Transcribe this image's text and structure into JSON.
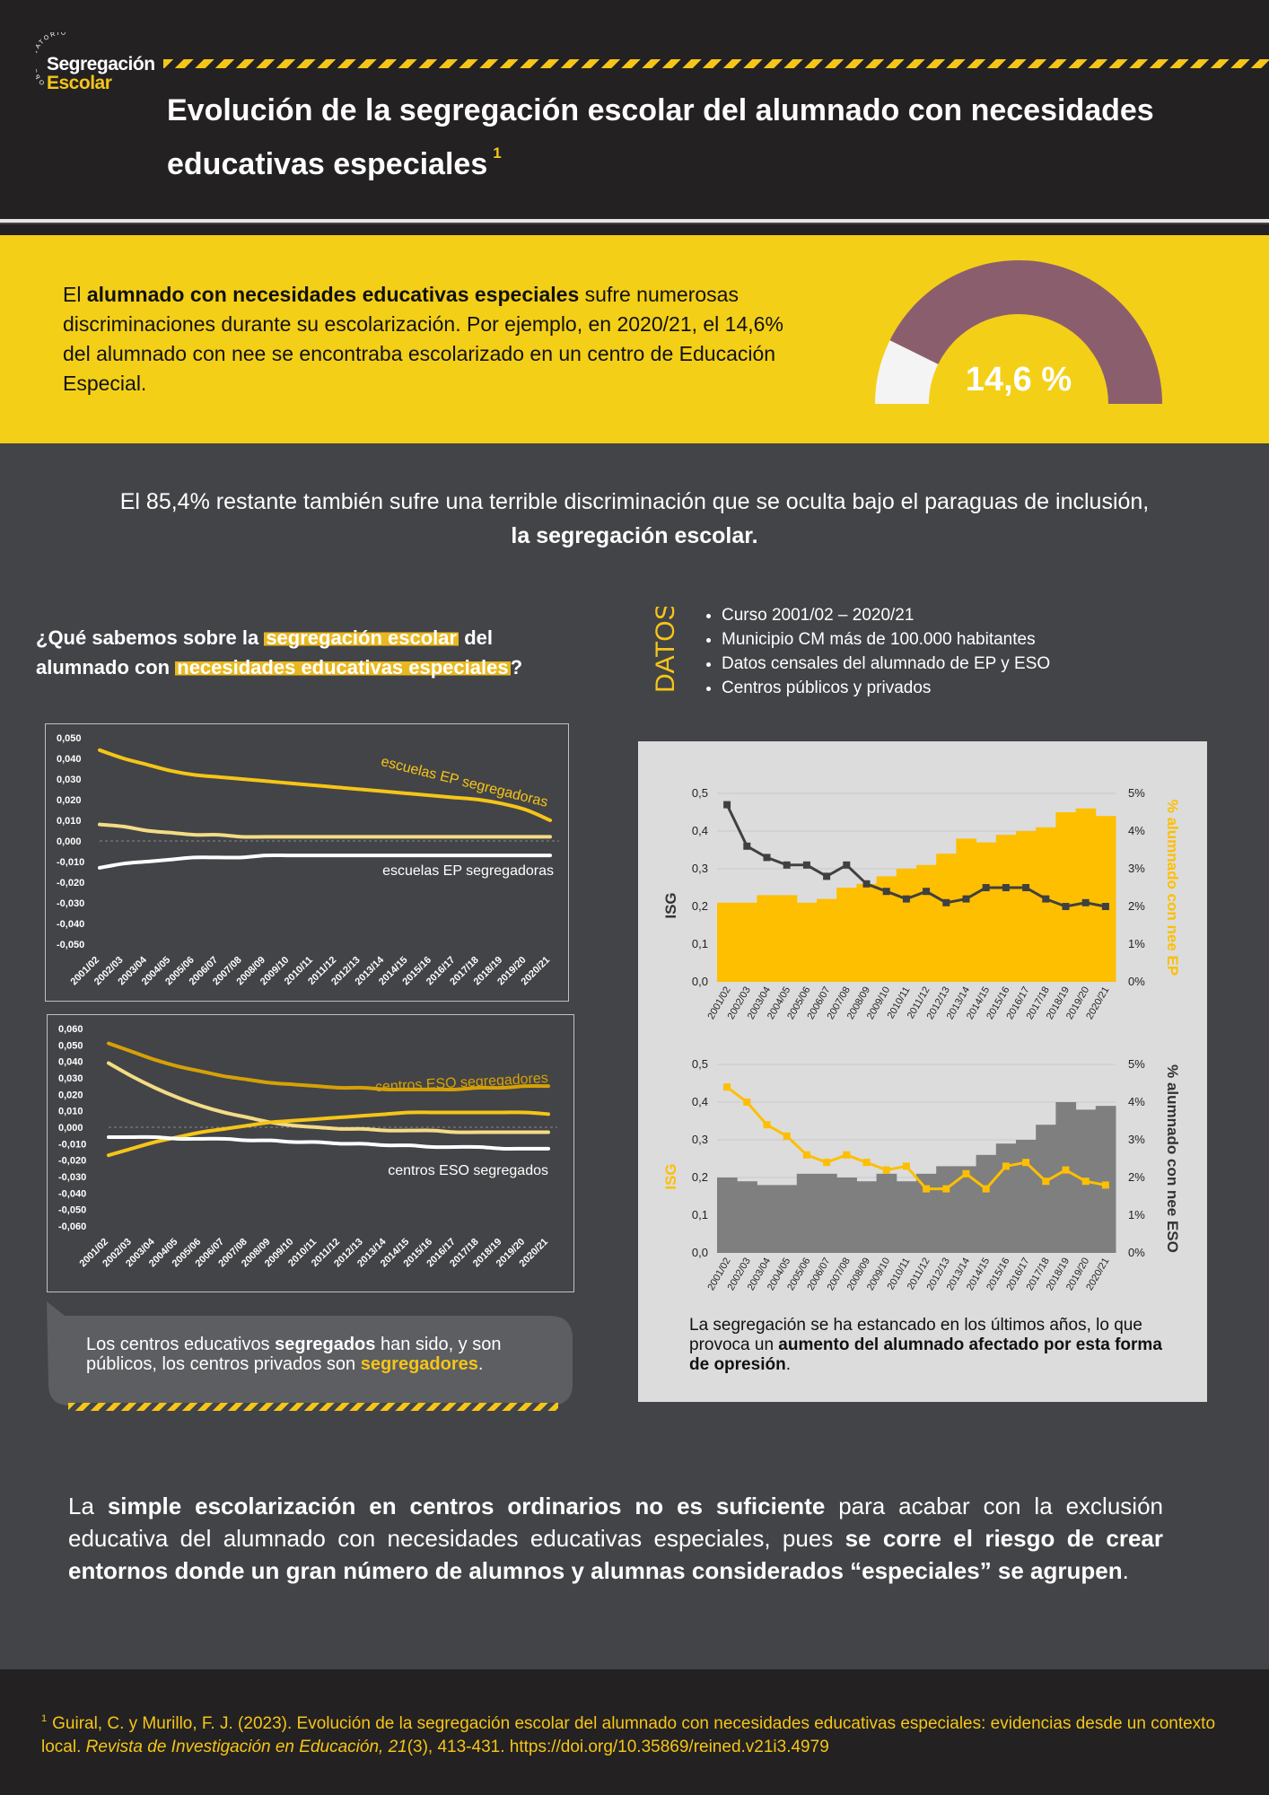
{
  "logo": {
    "arc_text": "OBSERVATORIO",
    "line1": "Segregación",
    "line2": "Escolar"
  },
  "title": {
    "text": "Evolución de la segregación escolar del alumnado con necesidades educativas especiales",
    "footnote_mark": "1"
  },
  "intro": {
    "p1": "El ",
    "bold": "alumnado con necesidades educativas especiales",
    "p2": " sufre numerosas discriminaciones durante su escolarización. Por ejemplo, en 2020/21, el 14,6% del alumnado con nee se encontraba escolarizado en un centro de Educación Especial."
  },
  "gauge": {
    "value": 14.6,
    "label": "14,6 %",
    "fill_color": "#8b5e6e",
    "rest_color": "#f4f4f4"
  },
  "sub1": {
    "line1": "El 85,4% restante también sufre una terrible discriminación que se oculta bajo el paraguas de inclusión,",
    "line2": "la segregación escolar."
  },
  "question": {
    "a": "¿Qué sabemos sobre la ",
    "hl1": "segregación escolar",
    "b": " del",
    "c": "alumnado con ",
    "hl2": "necesidades educativas especiales",
    "d": "?"
  },
  "datos": {
    "label": "DATOS",
    "items": [
      "Curso 2001/02 – 2020/21",
      "Municipio CM más de 100.000 habitantes",
      "Datos censales del alumnado de EP y ESO",
      "Centros públicos y privados"
    ]
  },
  "bubble": {
    "a": "Los centros educativos ",
    "b1": "segregados",
    "c": " han sido, y son públicos, los centros privados son ",
    "b2": "segregadores",
    "d": "."
  },
  "note2": {
    "a": "La segregación se ha estancado en los últimos años, lo que provoca un ",
    "b": "aumento del alumnado afectado por esta forma de opresión",
    "c": "."
  },
  "conclusion": {
    "a": "La ",
    "b1": "simple escolarización en centros ordinarios no es suficiente",
    "c": " para acabar con la exclusión educativa del alumnado con necesidades educativas especiales, pues ",
    "b2": "se corre el riesgo de crear entornos donde un gran número de alumnos y alumnas considerados “especiales” se agrupen",
    "d": "."
  },
  "footer": {
    "mark": "1",
    "a": "Guiral, C. y Murillo, F. J. (2023). Evolución de la segregación escolar del alumnado con necesidades educativas especiales: evidencias desde un contexto local. ",
    "journal": "Revista de Investigación en Educación, 21",
    "b": "(3), 413-431. https://doi.org/10.35869/reined.v21i3.4979"
  },
  "chart_data": [
    {
      "type": "line",
      "years": [
        "2001/02",
        "2002/03",
        "2003/04",
        "2004/05",
        "2005/06",
        "2006/07",
        "2007/08",
        "2008/09",
        "2009/10",
        "2010/11",
        "2011/12",
        "2012/13",
        "2013/14",
        "2014/15",
        "2015/16",
        "2016/17",
        "2017/18",
        "2018/19",
        "2019/20",
        "2020/21"
      ],
      "ylim": [
        -0.05,
        0.05
      ],
      "yticks": [
        "0,050",
        "0,040",
        "0,030",
        "0,020",
        "0,010",
        "0,000",
        "-0,010",
        "-0,020",
        "-0,030",
        "-0,040",
        "-0,050"
      ],
      "series": [
        {
          "name": "escuelas EP segregadoras",
          "color": "#f5c518",
          "values": [
            0.044,
            0.04,
            0.037,
            0.034,
            0.032,
            0.031,
            0.03,
            0.029,
            0.028,
            0.027,
            0.026,
            0.025,
            0.024,
            0.023,
            0.022,
            0.021,
            0.02,
            0.018,
            0.015,
            0.01
          ]
        },
        {
          "name": "",
          "color": "#f3dc86",
          "values": [
            0.008,
            0.007,
            0.005,
            0.004,
            0.003,
            0.003,
            0.002,
            0.002,
            0.002,
            0.002,
            0.002,
            0.002,
            0.002,
            0.002,
            0.002,
            0.002,
            0.002,
            0.002,
            0.002,
            0.002
          ]
        },
        {
          "name": "escuelas EP segregadoras",
          "color": "#ffffff",
          "values": [
            -0.013,
            -0.011,
            -0.01,
            -0.009,
            -0.008,
            -0.008,
            -0.008,
            -0.007,
            -0.007,
            -0.007,
            -0.007,
            -0.007,
            -0.007,
            -0.007,
            -0.007,
            -0.007,
            -0.007,
            -0.007,
            -0.007,
            -0.007
          ]
        }
      ]
    },
    {
      "type": "line",
      "years": [
        "2001/02",
        "2002/03",
        "2003/04",
        "2004/05",
        "2005/06",
        "2006/07",
        "2007/08",
        "2008/09",
        "2009/10",
        "2010/11",
        "2011/12",
        "2012/13",
        "2013/14",
        "2014/15",
        "2015/16",
        "2016/17",
        "2017/18",
        "2018/19",
        "2019/20",
        "2020/21"
      ],
      "ylim": [
        -0.06,
        0.06
      ],
      "yticks": [
        "0,060",
        "0,050",
        "0,040",
        "0,030",
        "0,020",
        "0,010",
        "0,000",
        "-0,010",
        "-0,020",
        "-0,030",
        "-0,040",
        "-0,050",
        "-0,060"
      ],
      "series": [
        {
          "name": "centros ESO segregadores",
          "color": "#d6a106",
          "values": [
            0.051,
            0.046,
            0.041,
            0.037,
            0.034,
            0.031,
            0.029,
            0.027,
            0.026,
            0.025,
            0.024,
            0.024,
            0.023,
            0.023,
            0.023,
            0.023,
            0.024,
            0.024,
            0.025,
            0.025
          ]
        },
        {
          "name": "",
          "color": "#f3dc86",
          "values": [
            0.039,
            0.031,
            0.024,
            0.018,
            0.013,
            0.009,
            0.006,
            0.003,
            0.001,
            0.0,
            -0.001,
            -0.001,
            -0.002,
            -0.002,
            -0.002,
            -0.003,
            -0.003,
            -0.003,
            -0.003,
            -0.003
          ]
        },
        {
          "name": "",
          "color": "#f5c518",
          "values": [
            -0.017,
            -0.013,
            -0.009,
            -0.006,
            -0.003,
            -0.001,
            0.001,
            0.003,
            0.004,
            0.005,
            0.006,
            0.007,
            0.008,
            0.009,
            0.009,
            0.009,
            0.009,
            0.009,
            0.009,
            0.008
          ]
        },
        {
          "name": "centros ESO segregados",
          "color": "#ffffff",
          "values": [
            -0.006,
            -0.006,
            -0.006,
            -0.007,
            -0.007,
            -0.007,
            -0.008,
            -0.008,
            -0.009,
            -0.009,
            -0.01,
            -0.01,
            -0.011,
            -0.011,
            -0.012,
            -0.012,
            -0.012,
            -0.013,
            -0.013,
            -0.013
          ]
        }
      ]
    },
    {
      "type": "bar+line",
      "years": [
        "2001/02",
        "2002/03",
        "2003/04",
        "2004/05",
        "2005/06",
        "2006/07",
        "2007/08",
        "2008/09",
        "2009/10",
        "2010/11",
        "2011/12",
        "2012/13",
        "2013/14",
        "2014/15",
        "2015/16",
        "2016/17",
        "2017/18",
        "2018/19",
        "2019/20",
        "2020/21"
      ],
      "ylabel": "ISG",
      "y2label": "% alumnado con nee EP",
      "ylim": [
        0,
        0.5
      ],
      "yticks": [
        "0,0",
        "0,1",
        "0,2",
        "0,3",
        "0,4",
        "0,5"
      ],
      "y2lim": [
        0,
        5
      ],
      "y2ticks": [
        "0%",
        "1%",
        "2%",
        "3%",
        "4%",
        "5%"
      ],
      "bar_color": "#fdbf00",
      "line_color": "#404040",
      "bars_pct": [
        2.1,
        2.1,
        2.3,
        2.3,
        2.1,
        2.2,
        2.5,
        2.6,
        2.8,
        3.0,
        3.1,
        3.4,
        3.8,
        3.7,
        3.9,
        4.0,
        4.1,
        4.5,
        4.6,
        4.4
      ],
      "isg": [
        0.47,
        0.36,
        0.33,
        0.31,
        0.31,
        0.28,
        0.31,
        0.26,
        0.24,
        0.22,
        0.24,
        0.21,
        0.22,
        0.25,
        0.25,
        0.25,
        0.22,
        0.2,
        0.21,
        0.2
      ]
    },
    {
      "type": "bar+line",
      "years": [
        "2001/02",
        "2002/03",
        "2003/04",
        "2004/05",
        "2005/06",
        "2006/07",
        "2007/08",
        "2008/09",
        "2009/10",
        "2010/11",
        "2011/12",
        "2012/13",
        "2013/14",
        "2014/15",
        "2015/16",
        "2016/17",
        "2017/18",
        "2018/19",
        "2019/20",
        "2020/21"
      ],
      "ylabel": "ISG",
      "y2label": "% alumnado con nee ESO",
      "ylim": [
        0,
        0.5
      ],
      "yticks": [
        "0,0",
        "0,1",
        "0,2",
        "0,3",
        "0,4",
        "0,5"
      ],
      "y2lim": [
        0,
        5
      ],
      "y2ticks": [
        "0%",
        "1%",
        "2%",
        "3%",
        "4%",
        "5%"
      ],
      "bar_color": "#7f7f7f",
      "line_color": "#fdbf00",
      "bars_pct": [
        2.0,
        1.9,
        1.8,
        1.8,
        2.1,
        2.1,
        2.0,
        1.9,
        2.1,
        1.9,
        2.1,
        2.3,
        2.3,
        2.6,
        2.9,
        3.0,
        3.4,
        4.0,
        3.8,
        3.9
      ],
      "isg": [
        0.44,
        0.4,
        0.34,
        0.31,
        0.26,
        0.24,
        0.26,
        0.24,
        0.22,
        0.23,
        0.17,
        0.17,
        0.21,
        0.17,
        0.23,
        0.24,
        0.19,
        0.22,
        0.19,
        0.18
      ]
    }
  ]
}
